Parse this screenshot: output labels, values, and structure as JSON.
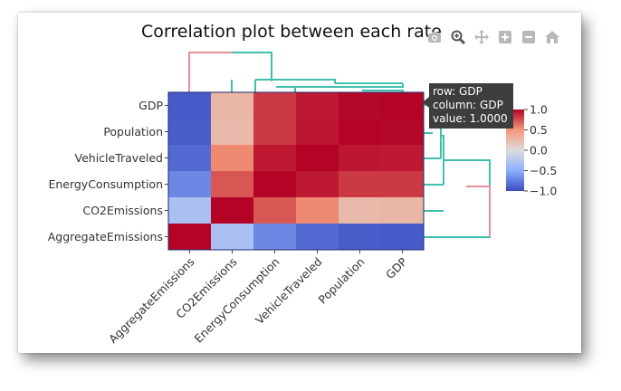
{
  "title": "Correlation plot between each rate",
  "toolbar": {
    "icons": [
      "camera-icon",
      "zoom-icon",
      "pan-icon",
      "zoom-in-icon",
      "zoom-out-icon",
      "home-icon"
    ]
  },
  "tooltip": {
    "row": "row: GDP",
    "column": "column: GDP",
    "value": "value:  1.0000"
  },
  "chart_data": {
    "type": "heatmap",
    "title": "Correlation plot between each rate",
    "row_labels": [
      "GDP",
      "Population",
      "VehicleTraveled",
      "EnergyConsumption",
      "CO2Emissions",
      "AggregateEmissions"
    ],
    "column_labels": [
      "AggregateEmissions",
      "CO2Emissions",
      "EnergyConsumption",
      "VehicleTraveled",
      "Population",
      "GDP"
    ],
    "values": [
      [
        -0.93,
        0.28,
        0.82,
        0.93,
        0.99,
        1.0
      ],
      [
        -0.92,
        0.25,
        0.82,
        0.94,
        1.0,
        0.99
      ],
      [
        -0.85,
        0.55,
        0.93,
        1.0,
        0.94,
        0.93
      ],
      [
        -0.7,
        0.72,
        1.0,
        0.93,
        0.82,
        0.82
      ],
      [
        -0.32,
        1.0,
        0.72,
        0.55,
        0.25,
        0.28
      ],
      [
        1.0,
        -0.32,
        -0.7,
        -0.85,
        -0.92,
        -0.93
      ]
    ],
    "zlim": [
      -1.0,
      1.0
    ],
    "colorscale": "coolwarm",
    "colorbar_ticks": [
      "1.0",
      "0.5",
      "0.0",
      "−0.5",
      "−1.0"
    ],
    "colorbar_tick_values": [
      1.0,
      0.5,
      0.0,
      -0.5,
      -1.0
    ],
    "dendrogram_colors": {
      "teal": "#3fbfad",
      "pink": "#e88f99"
    }
  }
}
